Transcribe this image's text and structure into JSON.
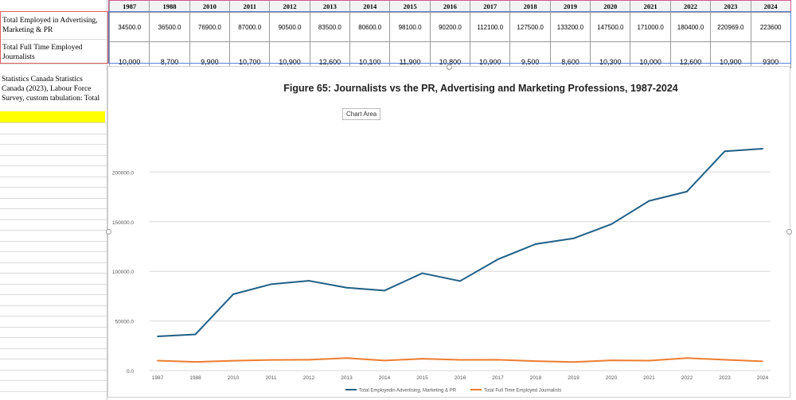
{
  "table": {
    "years": [
      "1987",
      "1988",
      "2010",
      "2011",
      "2012",
      "2013",
      "2014",
      "2015",
      "2016",
      "2017",
      "2018",
      "2019",
      "2020",
      "2021",
      "2022",
      "2023",
      "2024"
    ],
    "row1_label": "Total Employed in Advertising, Marketing & PR",
    "row1_values": [
      "34500.0",
      "36500.0",
      "76900.0",
      "87000.0",
      "90500.0",
      "83500.0",
      "80600.0",
      "98100.0",
      "90200.0",
      "112100.0",
      "127500.0",
      "133200.0",
      "147500.0",
      "171000.0",
      "180400.0",
      "220969.0",
      "223600"
    ],
    "row2_label": "Total Full Time Employed Journalists",
    "row2_values": [
      "10,000",
      "8,700",
      "9,900",
      "10,700",
      "10,900",
      "12,600",
      "10,100",
      "11,900",
      "10,800",
      "10,900",
      "9,500",
      "8,600",
      "10,300",
      "10,000",
      "12,600",
      "10,900",
      "9300"
    ]
  },
  "source_note": "Statistics Canada Statistics Canada (2023), Labour Force Survey, custom tabulation: Total",
  "tooltip": "Chart Area",
  "colors": {
    "series1": "#1f5f86",
    "series2": "#ed7d31",
    "highlight": "#ffff00"
  },
  "chart_data": {
    "type": "line",
    "title": "Figure 65: Journalists vs the PR, Advertising and Marketing Professions, 1987-2024",
    "x": [
      "1987",
      "1988",
      "2010",
      "2011",
      "2012",
      "2013",
      "2014",
      "2015",
      "2016",
      "2017",
      "2018",
      "2019",
      "2020",
      "2021",
      "2022",
      "2023",
      "2024"
    ],
    "ylim": [
      0,
      250000
    ],
    "yticks": [
      "0.0",
      "50000.0",
      "100000.0",
      "150000.0",
      "200000.0"
    ],
    "legend_position": "bottom",
    "grid": true,
    "series": [
      {
        "name": "Total Employedin Advertising, Marketing & PR",
        "values": [
          34500,
          36500,
          76900,
          87000,
          90500,
          83500,
          80600,
          98100,
          90200,
          112100,
          127500,
          133200,
          147500,
          171000,
          180400,
          220969,
          223600
        ]
      },
      {
        "name": "Total Full Time Employed Journalists",
        "values": [
          10000,
          8700,
          9900,
          10700,
          10900,
          12600,
          10100,
          11900,
          10800,
          10900,
          9500,
          8600,
          10300,
          10000,
          12600,
          10900,
          9300
        ]
      }
    ]
  }
}
